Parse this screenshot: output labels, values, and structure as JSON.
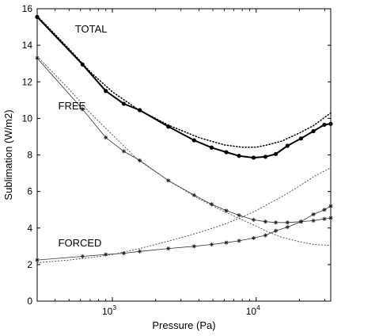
{
  "chart_data": {
    "type": "line",
    "title": "",
    "xlabel": "Pressure (Pa)",
    "ylabel": "Sublimation (W/m2)",
    "xscale": "log",
    "xlim": [
      300,
      33000
    ],
    "ylim": [
      0,
      16
    ],
    "x_ticks": [
      {
        "value": 1000,
        "base": "10",
        "exp": "3"
      },
      {
        "value": 10000,
        "base": "10",
        "exp": "4"
      }
    ],
    "y_ticks": [
      {
        "value": 0,
        "label": "0"
      },
      {
        "value": 2,
        "label": "2"
      },
      {
        "value": 4,
        "label": "4"
      },
      {
        "value": 6,
        "label": "6"
      },
      {
        "value": 8,
        "label": "8"
      },
      {
        "value": 10,
        "label": "10"
      },
      {
        "value": 12,
        "label": "12"
      },
      {
        "value": 14,
        "label": "14"
      },
      {
        "value": 16,
        "label": "16"
      }
    ],
    "grid": false,
    "legend": "none",
    "annotations": [
      {
        "text": "TOTAL",
        "x": 550,
        "y": 14.7
      },
      {
        "text": "FREE",
        "x": 420,
        "y": 10.5
      },
      {
        "text": "FORCED",
        "x": 420,
        "y": 3.0
      }
    ],
    "series": [
      {
        "marker": "dot",
        "line": "solid",
        "width": 2,
        "color": "#000000",
        "x": [
          300,
          620,
          900,
          1200,
          1550,
          2450,
          3700,
          4900,
          6200,
          7600,
          9600,
          11600,
          13700,
          16500,
          20500,
          25000,
          29800,
          33000
        ],
        "y": [
          15.55,
          12.95,
          11.5,
          10.8,
          10.45,
          9.55,
          8.8,
          8.4,
          8.15,
          7.95,
          7.85,
          7.9,
          8.05,
          8.5,
          8.9,
          9.3,
          9.65,
          9.7
        ]
      },
      {
        "marker": "none",
        "line": "dotted",
        "width": 1.5,
        "color": "#000000",
        "x": [
          300,
          500,
          700,
          1000,
          1500,
          2500,
          4000,
          6000,
          8000,
          10000,
          12000,
          15000,
          20000,
          25000,
          33000
        ],
        "y": [
          15.6,
          13.8,
          12.55,
          11.45,
          10.5,
          9.6,
          8.95,
          8.55,
          8.42,
          8.42,
          8.55,
          8.75,
          9.2,
          9.6,
          10.3
        ]
      },
      {
        "marker": "star",
        "line": "solid",
        "width": 0.8,
        "color": "#333333",
        "x": [
          300,
          620,
          900,
          1200,
          1550,
          2450,
          3700,
          4900,
          6200,
          7600,
          9600,
          11600,
          13700,
          16500,
          20500,
          25000,
          29800,
          33000
        ],
        "y": [
          13.3,
          10.5,
          8.95,
          8.2,
          7.7,
          6.6,
          5.8,
          5.3,
          4.95,
          4.7,
          4.45,
          4.35,
          4.3,
          4.3,
          4.35,
          4.4,
          4.5,
          4.55
        ]
      },
      {
        "marker": "none",
        "line": "dotted",
        "width": 1,
        "color": "#555555",
        "x": [
          300,
          500,
          700,
          1000,
          1500,
          2500,
          4000,
          6000,
          8000,
          10000,
          12000,
          15000,
          20000,
          25000,
          33000
        ],
        "y": [
          13.4,
          11.6,
          10.3,
          9.1,
          7.75,
          6.55,
          5.6,
          4.9,
          4.45,
          4.1,
          3.8,
          3.5,
          3.25,
          3.1,
          3.05
        ]
      },
      {
        "marker": "star",
        "line": "solid",
        "width": 0.8,
        "color": "#333333",
        "x": [
          300,
          620,
          900,
          1200,
          1550,
          2450,
          3700,
          4900,
          6200,
          7600,
          9600,
          11600,
          13700,
          16500,
          20500,
          25000,
          29800,
          33000
        ],
        "y": [
          2.25,
          2.45,
          2.55,
          2.62,
          2.72,
          2.88,
          3.0,
          3.1,
          3.2,
          3.3,
          3.45,
          3.6,
          3.85,
          4.05,
          4.35,
          4.75,
          5.0,
          5.2
        ]
      },
      {
        "marker": "none",
        "line": "dotted",
        "width": 1,
        "color": "#555555",
        "x": [
          300,
          500,
          700,
          1000,
          1500,
          2500,
          4000,
          6000,
          8000,
          10000,
          12000,
          15000,
          20000,
          25000,
          33000
        ],
        "y": [
          2.1,
          2.25,
          2.38,
          2.55,
          2.85,
          3.3,
          3.75,
          4.2,
          4.6,
          4.95,
          5.3,
          5.7,
          6.3,
          6.8,
          7.3
        ]
      }
    ]
  }
}
